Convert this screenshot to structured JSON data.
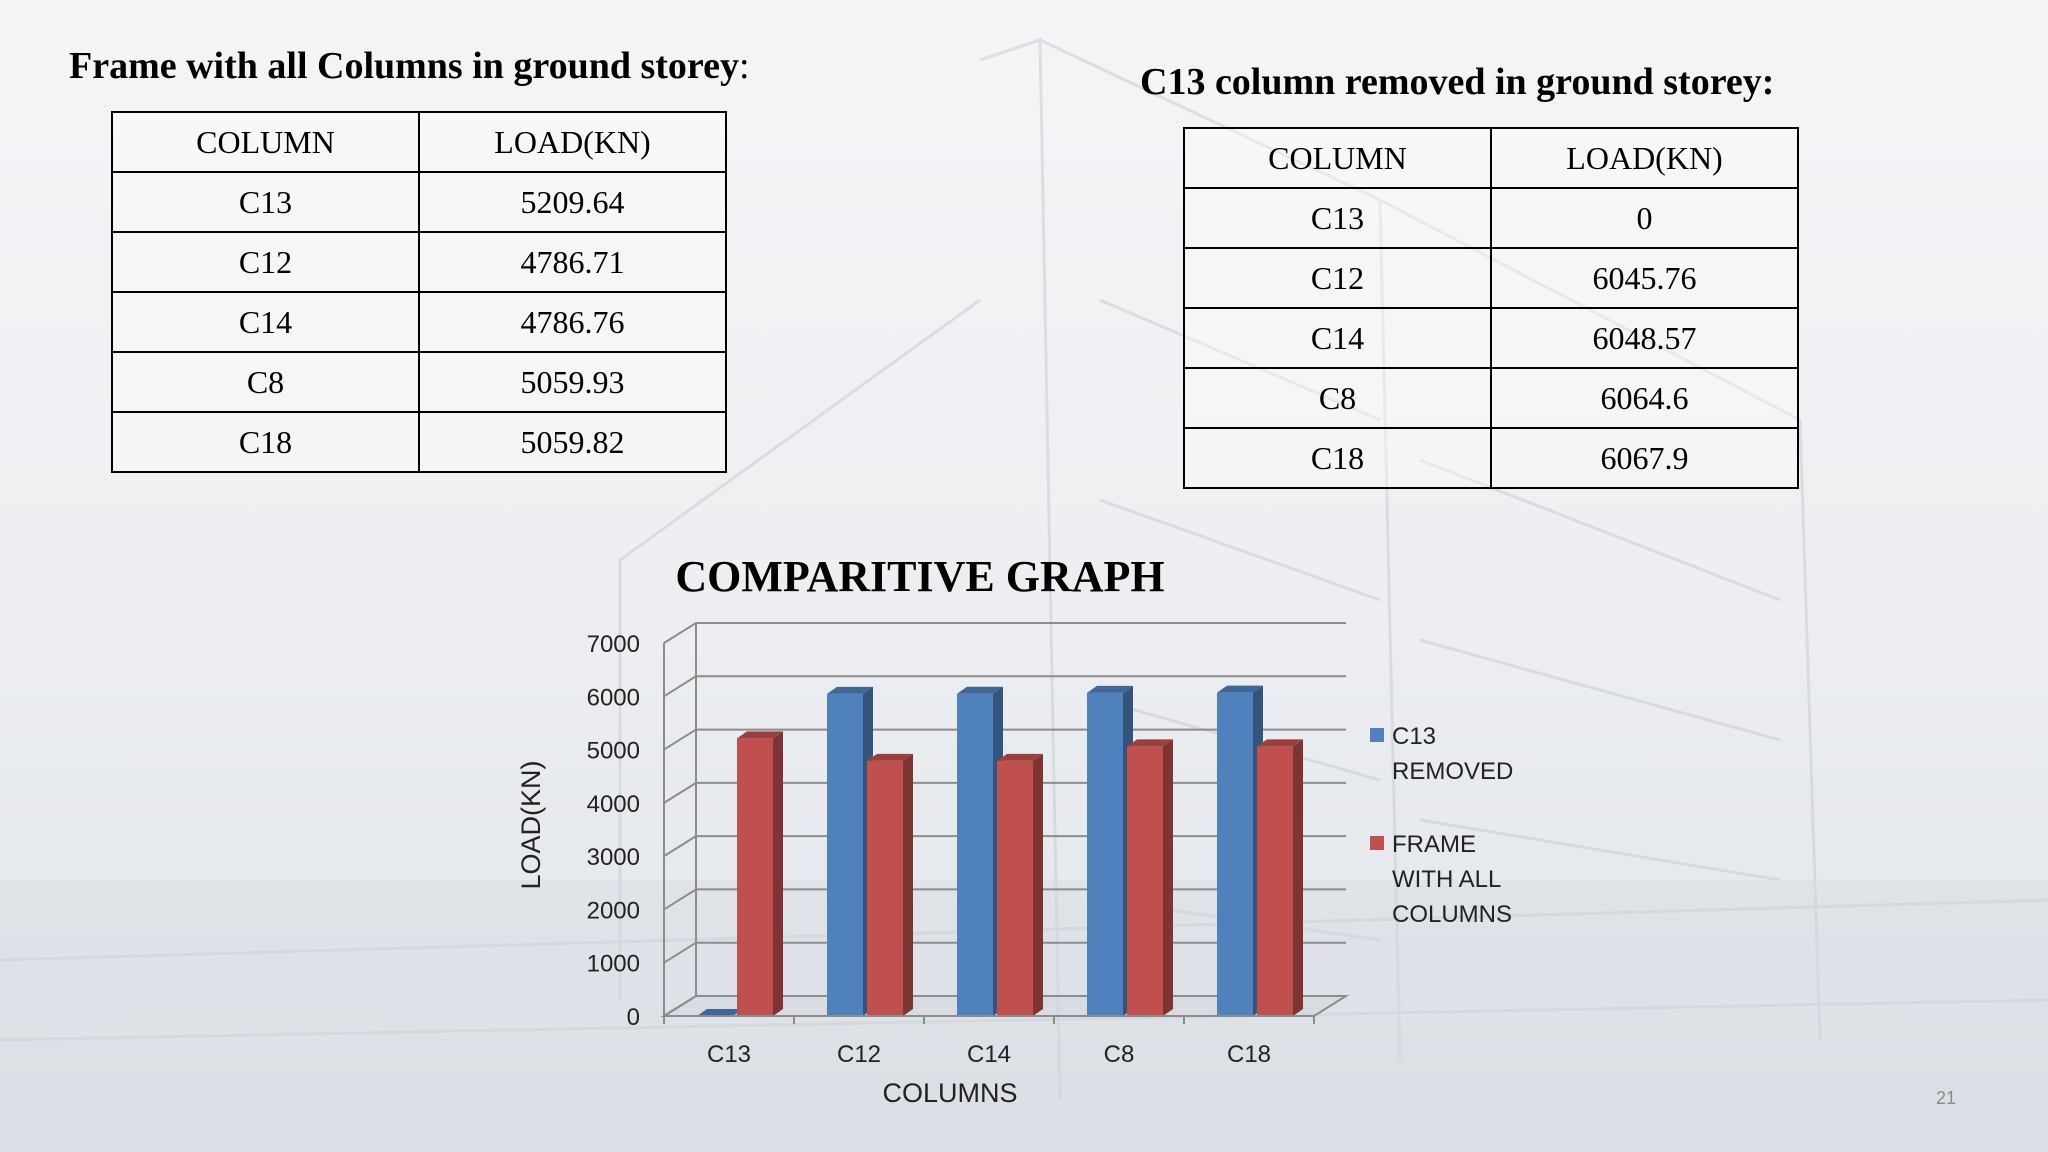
{
  "left_table": {
    "title": "Frame with all Columns in ground storey",
    "title_suffix": ":",
    "headers": [
      "COLUMN",
      "LOAD(KN)"
    ],
    "rows": [
      [
        "C13",
        "5209.64"
      ],
      [
        "C12",
        "4786.71"
      ],
      [
        "C14",
        "4786.76"
      ],
      [
        "C8",
        "5059.93"
      ],
      [
        "C18",
        "5059.82"
      ]
    ]
  },
  "right_table": {
    "title": "C13 column removed in ground storey:",
    "headers": [
      "COLUMN",
      "LOAD(KN)"
    ],
    "rows": [
      [
        "C13",
        "0"
      ],
      [
        "C12",
        "6045.76"
      ],
      [
        "C14",
        "6048.57"
      ],
      [
        "C8",
        "6064.6"
      ],
      [
        "C18",
        "6067.9"
      ]
    ]
  },
  "chart_data": {
    "type": "bar",
    "title": "COMPARITIVE GRAPH",
    "xlabel": "COLUMNS",
    "ylabel": "LOAD(KN)",
    "categories": [
      "C13",
      "C12",
      "C14",
      "C8",
      "C18"
    ],
    "ylim": [
      0,
      7000
    ],
    "yticks": [
      0,
      1000,
      2000,
      3000,
      4000,
      5000,
      6000,
      7000
    ],
    "grid": true,
    "three_d": true,
    "legend_position": "right",
    "series": [
      {
        "name": "C13 REMOVED",
        "legend_lines": [
          "C13",
          "REMOVED"
        ],
        "values": [
          0,
          6045.76,
          6048.57,
          6064.6,
          6067.9
        ],
        "color": "#4f81bd"
      },
      {
        "name": "FRAME WITH ALL COLUMNS",
        "legend_lines": [
          "FRAME",
          "WITH ALL",
          "COLUMNS"
        ],
        "values": [
          5209.64,
          4786.71,
          4786.76,
          5059.93,
          5059.82
        ],
        "color": "#c0504d"
      }
    ]
  },
  "slide_number": "21"
}
